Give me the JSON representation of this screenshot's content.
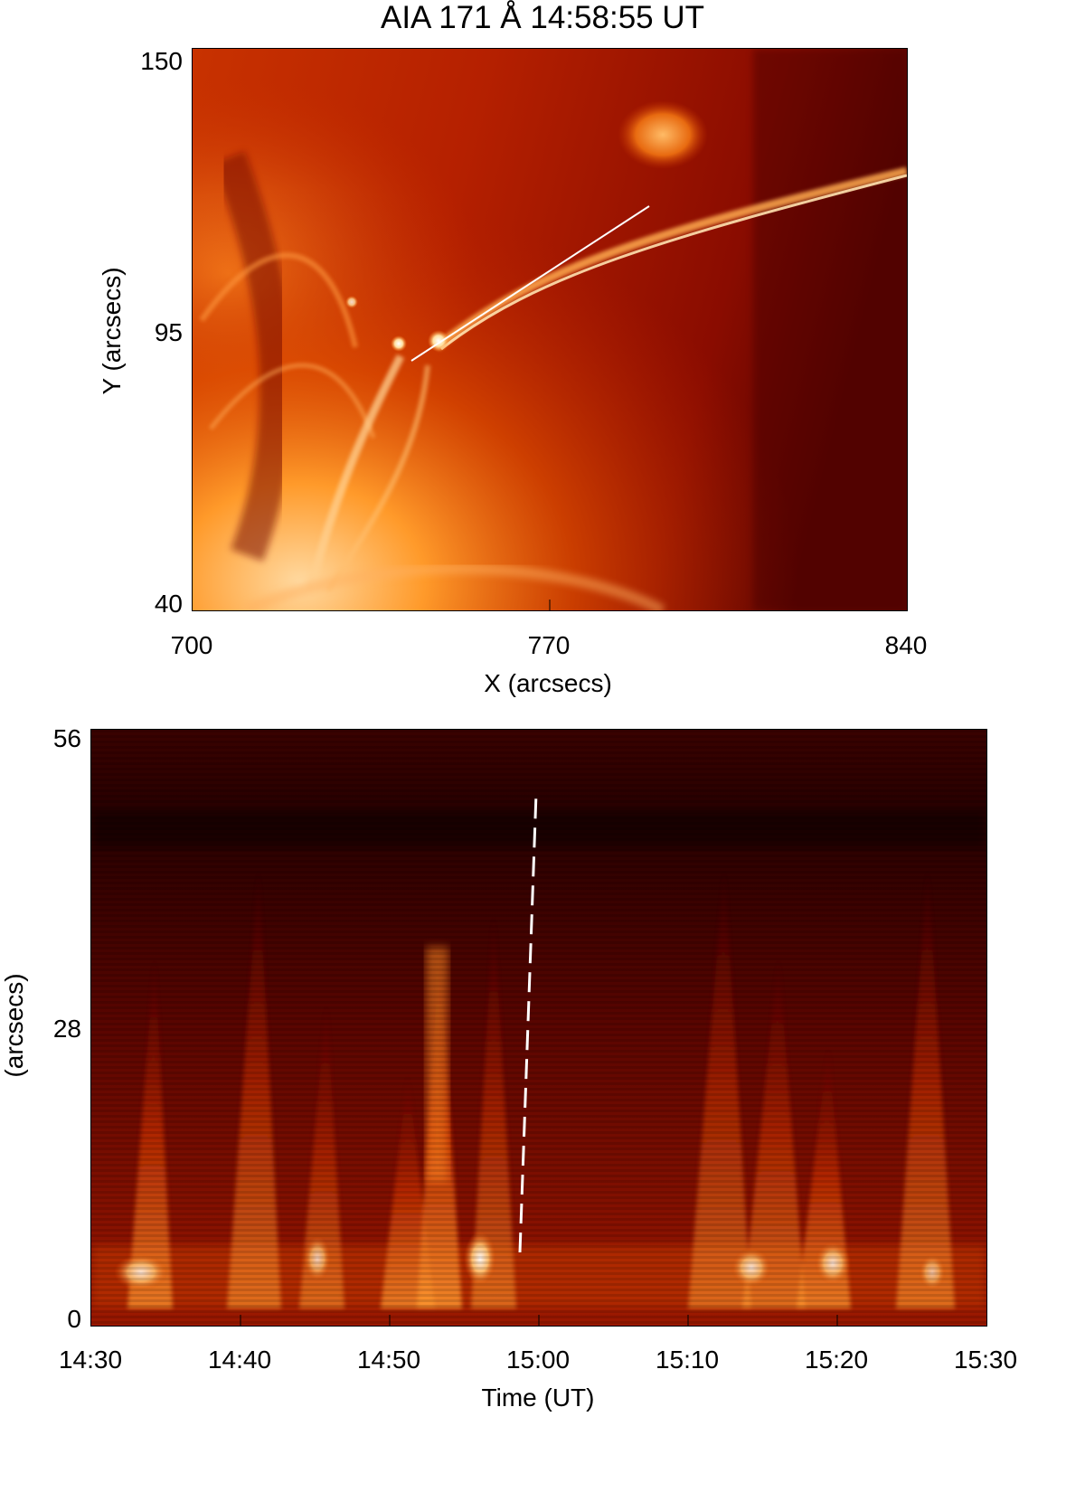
{
  "top_panel": {
    "title": "AIA 171 Å 14:58:55 UT",
    "xlabel": "X (arcsecs)",
    "ylabel": "Y (arcsecs)",
    "x_ticks": [
      "700",
      "770",
      "840"
    ],
    "y_ticks": [
      "150",
      "95",
      "40"
    ],
    "x_range": [
      700,
      840
    ],
    "y_range": [
      40,
      150
    ],
    "colormap": [
      "#2a0000",
      "#7a0a00",
      "#b51c00",
      "#e85a00",
      "#ff9a2a",
      "#ffd58a",
      "#ffffff"
    ]
  },
  "bottom_panel": {
    "xlabel": "Time (UT)",
    "ylabel": "(arcsecs)",
    "x_ticks": [
      "14:30",
      "14:40",
      "14:50",
      "15:00",
      "15:10",
      "15:20",
      "15:30"
    ],
    "y_ticks": [
      "56",
      "28",
      "0"
    ],
    "x_range": [
      "14:30",
      "15:30"
    ],
    "y_range": [
      0,
      56
    ],
    "dashed_line": {
      "from": [
        "14:58:55",
        6
      ],
      "to": [
        "14:59:55",
        51
      ]
    }
  }
}
